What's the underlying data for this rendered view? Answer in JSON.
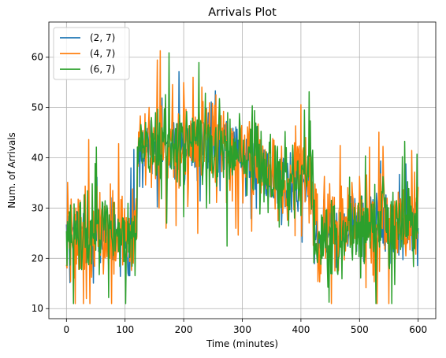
{
  "chart_data": {
    "type": "line",
    "title": "Arrivals Plot",
    "xlabel": "Time (minutes)",
    "ylabel": "Num. of Arrivals",
    "xlim": [
      -30,
      630
    ],
    "ylim": [
      8,
      67
    ],
    "xticks": [
      0,
      100,
      200,
      300,
      400,
      500,
      600
    ],
    "yticks": [
      10,
      20,
      30,
      40,
      50,
      60
    ],
    "grid": true,
    "legend": {
      "position": "top-left"
    },
    "x": [
      0,
      120,
      240,
      360,
      420,
      480,
      600
    ],
    "series": [
      {
        "name": "(2, 7)",
        "color": "#1f77b4",
        "values": [
          25,
          25,
          45,
          35,
          25,
          27,
          25
        ]
      },
      {
        "name": "(4, 7)",
        "color": "#ff7f0e",
        "values": [
          24,
          26,
          45,
          35,
          26,
          26,
          24
        ]
      },
      {
        "name": "(6, 7)",
        "color": "#2ca02c",
        "values": [
          25,
          25,
          44,
          36,
          25,
          27,
          25
        ]
      }
    ],
    "series_noise_amplitude": {
      "(2, 7)": 5,
      "(4, 7)": 7,
      "(6, 7)": 6
    }
  }
}
